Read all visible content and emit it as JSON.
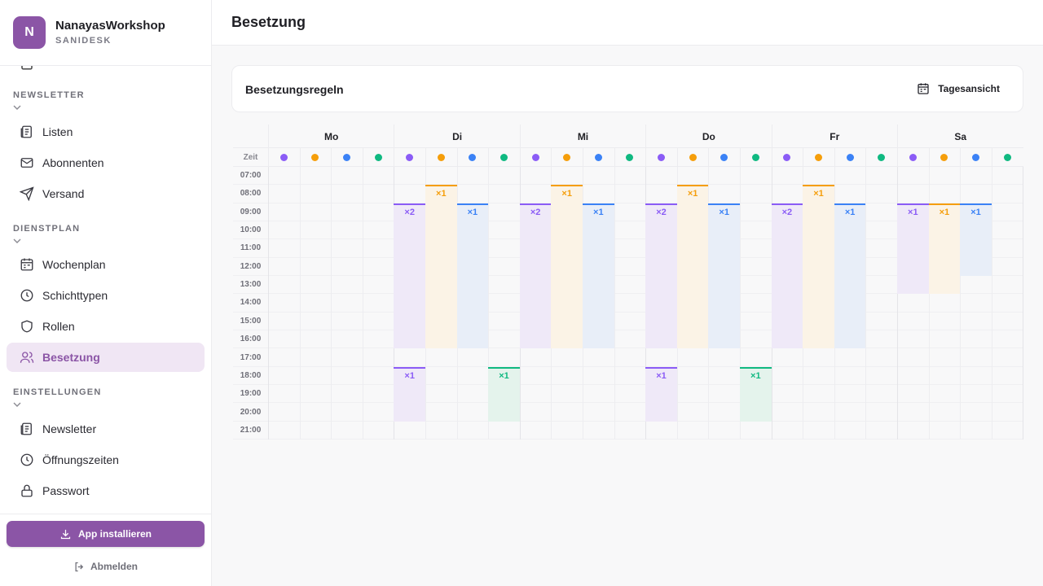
{
  "brand": {
    "initial": "N",
    "name": "NanayasWorkshop",
    "subtitle": "SANIDESK"
  },
  "nav": {
    "sections": [
      {
        "label": "NEWSLETTER",
        "items": [
          {
            "label": "Listen",
            "icon": "list-icon"
          },
          {
            "label": "Abonnenten",
            "icon": "mail-icon"
          },
          {
            "label": "Versand",
            "icon": "send-icon"
          }
        ]
      },
      {
        "label": "DIENSTPLAN",
        "items": [
          {
            "label": "Wochenplan",
            "icon": "calendar-icon"
          },
          {
            "label": "Schichttypen",
            "icon": "clock-icon"
          },
          {
            "label": "Rollen",
            "icon": "shield-icon"
          },
          {
            "label": "Besetzung",
            "icon": "users-icon",
            "active": true
          }
        ]
      },
      {
        "label": "EINSTELLUNGEN",
        "items": [
          {
            "label": "Newsletter",
            "icon": "newspaper-icon"
          },
          {
            "label": "Öffnungszeiten",
            "icon": "clock-icon"
          },
          {
            "label": "Passwort",
            "icon": "lock-icon"
          }
        ]
      }
    ]
  },
  "install_label": "App installieren",
  "logout_label": "Abmelden",
  "page_title": "Besetzung",
  "card": {
    "title": "Besetzungsregeln",
    "day_view_label": "Tagesansicht"
  },
  "grid": {
    "zeit_label": "Zeit",
    "days": [
      "Mo",
      "Di",
      "Mi",
      "Do",
      "Fr",
      "Sa"
    ],
    "hours": [
      "07:00",
      "08:00",
      "09:00",
      "10:00",
      "11:00",
      "12:00",
      "13:00",
      "14:00",
      "15:00",
      "16:00",
      "17:00",
      "18:00",
      "19:00",
      "20:00",
      "21:00"
    ],
    "roles": [
      {
        "color": "#8b5cf6",
        "fill": "#efe9f8"
      },
      {
        "color": "#f59e0b",
        "fill": "#fbf3e6"
      },
      {
        "color": "#3b82f6",
        "fill": "#e8eef8"
      },
      {
        "color": "#10b981",
        "fill": "#e4f3ec"
      }
    ],
    "blocks": [
      {
        "day": 1,
        "role": 0,
        "start": 9,
        "end": 17,
        "label": "×2"
      },
      {
        "day": 1,
        "role": 1,
        "start": 8,
        "end": 17,
        "label": "×1"
      },
      {
        "day": 1,
        "role": 2,
        "start": 9,
        "end": 17,
        "label": "×1"
      },
      {
        "day": 1,
        "role": 0,
        "start": 18,
        "end": 21,
        "label": "×1"
      },
      {
        "day": 1,
        "role": 3,
        "start": 18,
        "end": 21,
        "label": "×1"
      },
      {
        "day": 2,
        "role": 0,
        "start": 9,
        "end": 17,
        "label": "×2"
      },
      {
        "day": 2,
        "role": 1,
        "start": 8,
        "end": 17,
        "label": "×1"
      },
      {
        "day": 2,
        "role": 2,
        "start": 9,
        "end": 17,
        "label": "×1"
      },
      {
        "day": 3,
        "role": 0,
        "start": 9,
        "end": 17,
        "label": "×2"
      },
      {
        "day": 3,
        "role": 1,
        "start": 8,
        "end": 17,
        "label": "×1"
      },
      {
        "day": 3,
        "role": 2,
        "start": 9,
        "end": 17,
        "label": "×1"
      },
      {
        "day": 3,
        "role": 0,
        "start": 18,
        "end": 21,
        "label": "×1"
      },
      {
        "day": 3,
        "role": 3,
        "start": 18,
        "end": 21,
        "label": "×1"
      },
      {
        "day": 4,
        "role": 0,
        "start": 9,
        "end": 17,
        "label": "×2"
      },
      {
        "day": 4,
        "role": 1,
        "start": 8,
        "end": 17,
        "label": "×1"
      },
      {
        "day": 4,
        "role": 2,
        "start": 9,
        "end": 17,
        "label": "×1"
      },
      {
        "day": 5,
        "role": 0,
        "start": 9,
        "end": 14,
        "label": "×1"
      },
      {
        "day": 5,
        "role": 1,
        "start": 9,
        "end": 14,
        "label": "×1"
      },
      {
        "day": 5,
        "role": 2,
        "start": 9,
        "end": 13,
        "label": "×1"
      }
    ]
  }
}
